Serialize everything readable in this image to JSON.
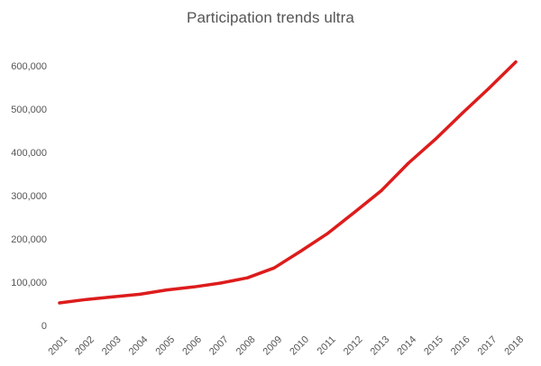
{
  "chart_data": {
    "type": "line",
    "title": "Participation trends ultra",
    "xlabel": "",
    "ylabel": "",
    "categories": [
      "2001",
      "2002",
      "2003",
      "2004",
      "2005",
      "2006",
      "2007",
      "2008",
      "2009",
      "2010",
      "2011",
      "2012",
      "2013",
      "2014",
      "2015",
      "2016",
      "2017",
      "2018"
    ],
    "series": [
      {
        "name": "Participation",
        "color": "#dd1c1c",
        "values": [
          52000,
          60000,
          66000,
          72000,
          82000,
          89000,
          98000,
          110000,
          133000,
          172000,
          213000,
          262000,
          312000,
          375000,
          430000,
          490000,
          548000,
          609000
        ]
      }
    ],
    "ylim": [
      0,
      600000
    ],
    "yticks": [
      0,
      100000,
      200000,
      300000,
      400000,
      500000,
      600000
    ],
    "ytick_labels": [
      "0",
      "100,000",
      "200,000",
      "300,000",
      "400,000",
      "500,000",
      "600,000"
    ],
    "grid": false,
    "legend": "none"
  }
}
